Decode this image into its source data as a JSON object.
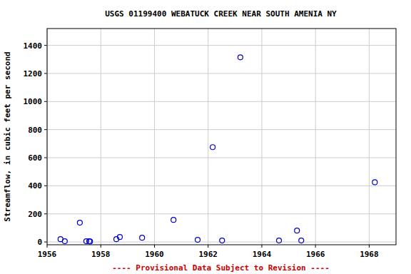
{
  "chart_data": {
    "type": "scatter",
    "title": "USGS 01199400 WEBATUCK CREEK NEAR SOUTH AMENIA NY",
    "y_label": "Streamflow, in cubic feet per second",
    "footnote": "---- Provisional Data Subject to Revision ----",
    "x": [
      1956.5,
      1956.66,
      1957.22,
      1957.46,
      1957.57,
      1957.6,
      1958.58,
      1958.71,
      1959.54,
      1960.71,
      1961.61,
      1962.17,
      1962.52,
      1963.2,
      1964.64,
      1965.31,
      1965.47,
      1968.21
    ],
    "values": [
      20,
      5,
      137,
      5,
      5,
      3,
      20,
      35,
      30,
      157,
      15,
      675,
      10,
      1315,
      10,
      81,
      10,
      425
    ],
    "color": "#0000cc",
    "marker": "open-circle",
    "xlim": [
      1956,
      1969
    ],
    "xticks": [
      1956,
      1958,
      1960,
      1962,
      1964,
      1966,
      1968
    ],
    "ylim": [
      -20,
      1520
    ],
    "yticks": [
      0,
      200,
      400,
      600,
      800,
      1000,
      1200,
      1400
    ],
    "grid": true
  }
}
